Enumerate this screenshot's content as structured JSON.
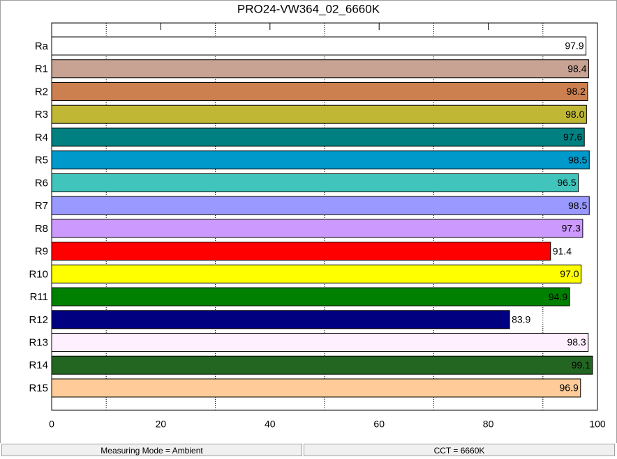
{
  "chart_data": {
    "type": "bar",
    "orientation": "horizontal",
    "title": "PRO24-VW364_02_6660K",
    "categories": [
      "Ra",
      "R1",
      "R2",
      "R3",
      "R4",
      "R5",
      "R6",
      "R7",
      "R8",
      "R9",
      "R10",
      "R11",
      "R12",
      "R13",
      "R14",
      "R15"
    ],
    "values": [
      97.9,
      98.4,
      98.2,
      98.0,
      97.6,
      98.5,
      96.5,
      98.5,
      97.3,
      91.4,
      97.0,
      94.9,
      83.9,
      98.3,
      99.1,
      96.9
    ],
    "value_labels": [
      "97.9",
      "98.4",
      "98.2",
      "98.0",
      "97.6",
      "98.5",
      "96.5",
      "98.5",
      "97.3",
      "91.4",
      "97.0",
      "94.9",
      "83.9",
      "98.3",
      "99.1",
      "96.9"
    ],
    "colors": [
      "#ffffff",
      "#c8a393",
      "#cc8050",
      "#c0b834",
      "#008080",
      "#0099cc",
      "#40c4bc",
      "#9999ff",
      "#cc99ff",
      "#ff0000",
      "#ffff00",
      "#008000",
      "#000080",
      "#fff0ff",
      "#226622",
      "#ffcc99"
    ],
    "xlim": [
      0,
      100
    ],
    "xticks": [
      0,
      20,
      40,
      60,
      80,
      100
    ],
    "xminorticks": [
      10,
      30,
      50,
      70,
      90
    ],
    "grid": true
  },
  "status_bar": {
    "left": "Measuring Mode = Ambient",
    "right": "CCT = 6660K"
  }
}
